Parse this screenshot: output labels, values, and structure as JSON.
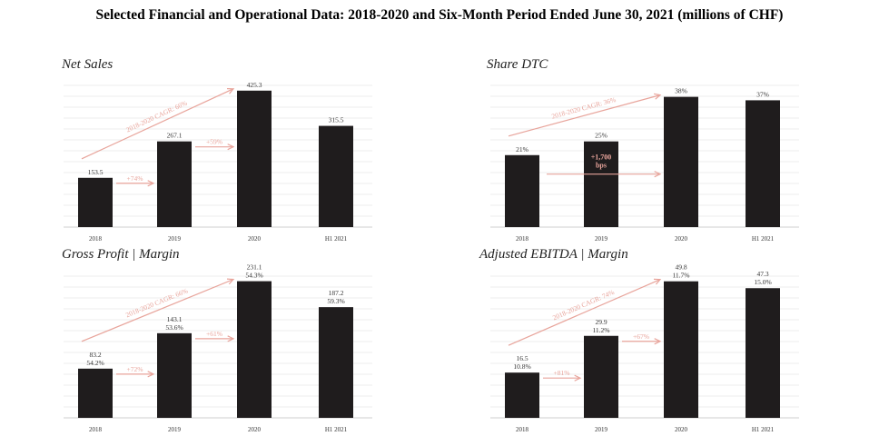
{
  "page_title": "Selected Financial and Operational Data: 2018-2020 and Six-Month Period Ended June 30, 2021 (millions of CHF)",
  "colors": {
    "bar": "#1f1c1d",
    "annotation": "#e8a49b",
    "grid": "#e6e6e6",
    "label": "#333333"
  },
  "chart_data": [
    {
      "id": "net-sales",
      "type": "bar",
      "title": "Net Sales",
      "categories": [
        "2018",
        "2019",
        "2020",
        "H1 2021"
      ],
      "values": [
        153.5,
        267.1,
        425.3,
        315.5
      ],
      "labels": [
        [
          "153.5"
        ],
        [
          "267.1"
        ],
        [
          "425.3"
        ],
        [
          "315.5"
        ]
      ],
      "ylim": [
        0,
        470
      ],
      "cagr_label": "2018-2020 CAGR: 66%",
      "growth_labels": [
        "+74%",
        "+59%"
      ]
    },
    {
      "id": "share-dtc",
      "type": "bar",
      "title": "Share DTC",
      "categories": [
        "2018",
        "2019",
        "2020",
        "H1 2021"
      ],
      "values": [
        21,
        25,
        38,
        37
      ],
      "labels": [
        [
          "21%"
        ],
        [
          "25%"
        ],
        [
          "38%"
        ],
        [
          "37%"
        ]
      ],
      "ylim": [
        0,
        44
      ],
      "cagr_label": "2018-2020 CAGR: 36%",
      "callout": [
        "+1,700",
        "bps"
      ]
    },
    {
      "id": "gross-profit",
      "type": "bar",
      "title": "Gross Profit | Margin",
      "categories": [
        "2018",
        "2019",
        "2020",
        "H1 2021"
      ],
      "values": [
        83.2,
        143.1,
        231.1,
        187.2
      ],
      "margins": [
        54.2,
        53.6,
        54.3,
        59.3
      ],
      "labels": [
        [
          "83.2",
          "54.2%"
        ],
        [
          "143.1",
          "53.6%"
        ],
        [
          "231.1",
          "54.3%"
        ],
        [
          "187.2",
          "59.3%"
        ]
      ],
      "ylim": [
        0,
        255
      ],
      "cagr_label": "2018-2020 CAGR: 66%",
      "growth_labels": [
        "+72%",
        "+61%"
      ]
    },
    {
      "id": "adj-ebitda",
      "type": "bar",
      "title": "Adjusted EBITDA | Margin",
      "categories": [
        "2018",
        "2019",
        "2020",
        "H1 2021"
      ],
      "values": [
        16.5,
        29.9,
        49.8,
        47.3
      ],
      "margins": [
        10.8,
        11.2,
        11.7,
        15.0
      ],
      "labels": [
        [
          "16.5",
          "10.8%"
        ],
        [
          "29.9",
          "11.2%"
        ],
        [
          "49.8",
          "11.7%"
        ],
        [
          "47.3",
          "15.0%"
        ]
      ],
      "ylim": [
        0,
        55
      ],
      "cagr_label": "2018-2020 CAGR: 74%",
      "growth_labels": [
        "+81%",
        "+67%"
      ]
    }
  ]
}
